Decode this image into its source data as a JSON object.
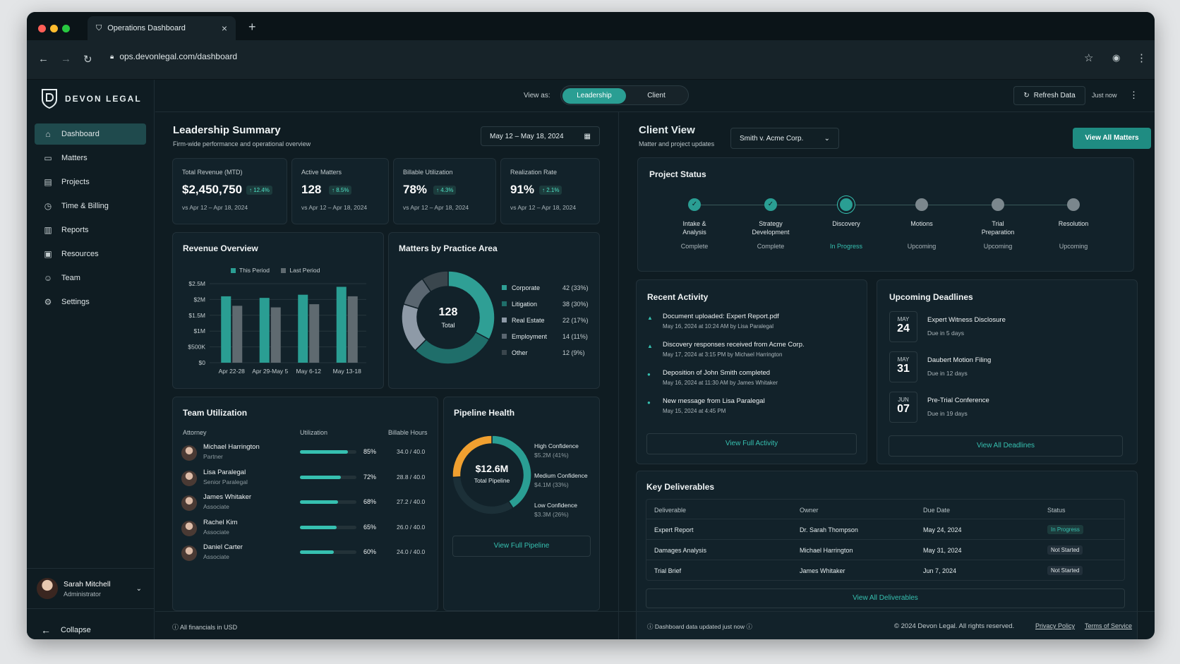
{
  "browser": {
    "tab_title": "Operations Dashboard",
    "url": "ops.devonlegal.com/dashboard"
  },
  "brand": {
    "name": "DEVON LEGAL"
  },
  "colors": {
    "accent": "#36c0b0",
    "background": "#0f1c22",
    "card": "#12222a",
    "orange": "#f0a030",
    "gray_series": "#5f6a70"
  },
  "sidebar": {
    "items": [
      {
        "label": "Dashboard",
        "icon": "home-icon",
        "active": true
      },
      {
        "label": "Matters",
        "icon": "briefcase-icon"
      },
      {
        "label": "Projects",
        "icon": "folder-icon"
      },
      {
        "label": "Time & Billing",
        "icon": "clock-icon"
      },
      {
        "label": "Reports",
        "icon": "bar-chart-icon"
      },
      {
        "label": "Resources",
        "icon": "book-icon"
      },
      {
        "label": "Team",
        "icon": "users-icon"
      },
      {
        "label": "Settings",
        "icon": "gear-icon"
      }
    ],
    "user": {
      "name": "Sarah Mitchell",
      "role": "Administrator"
    },
    "collapse": "Collapse"
  },
  "topbar": {
    "view_as": "View as:",
    "views": [
      "Leadership",
      "Client"
    ],
    "refresh": "Refresh Data",
    "updated": "Just now"
  },
  "leadership": {
    "title": "Leadership Summary",
    "subtitle": "Firm-wide performance and operational overview",
    "date_range": "May 12 – May 18, 2024"
  },
  "kpis": [
    {
      "label": "Total Revenue (MTD)",
      "value": "$2,450,750",
      "change": "↑ 12.4%",
      "compare": "vs Apr 12 – Apr 18, 2024"
    },
    {
      "label": "Active Matters",
      "value": "128",
      "change": "↑ 8.5%",
      "compare": "vs Apr 12 – Apr 18, 2024"
    },
    {
      "label": "Billable Utilization",
      "value": "78%",
      "change": "↑ 4.3%",
      "compare": "vs Apr 12 – Apr 18, 2024"
    },
    {
      "label": "Realization Rate",
      "value": "91%",
      "change": "↑ 2.1%",
      "compare": "vs Apr 12 – Apr 18, 2024"
    }
  ],
  "revenue": {
    "title": "Revenue Overview",
    "legend": [
      "This Period",
      "Last Period"
    ],
    "yticks": [
      "$2.5M",
      "$2M",
      "$1.5M",
      "$1M",
      "$500K",
      "$0"
    ]
  },
  "chart_data": [
    {
      "type": "bar",
      "title": "Revenue Overview",
      "categories": [
        "Apr 22-28",
        "Apr 29-May 5",
        "May 6-12",
        "May 13-18"
      ],
      "series": [
        {
          "name": "This Period",
          "values": [
            2.1,
            2.05,
            2.15,
            2.4
          ]
        },
        {
          "name": "Last Period",
          "values": [
            1.8,
            1.75,
            1.85,
            2.1
          ]
        }
      ],
      "ylim": [
        0,
        2.5
      ],
      "grid": true,
      "legend": "top"
    },
    {
      "type": "pie",
      "title": "Matters by Practice Area",
      "center_value": "128",
      "center_label": "Total",
      "labels": [
        "Corporate",
        "Litigation",
        "Real Estate",
        "Employment",
        "Other"
      ],
      "values": [
        42,
        38,
        22,
        14,
        12
      ],
      "percent": [
        "33%",
        "30%",
        "17%",
        "11%",
        "9%"
      ]
    },
    {
      "type": "pie",
      "title": "Pipeline Health",
      "center_value": "$12.6M",
      "center_label": "Total Pipeline",
      "labels": [
        "High Confidence",
        "Medium Confidence",
        "Low Confidence"
      ],
      "amounts": [
        "$5.2M",
        "$4.1M",
        "$3.3M"
      ],
      "values": [
        41,
        33,
        26
      ]
    }
  ],
  "practice": {
    "title": "Matters by Practice Area",
    "rows": [
      {
        "name": "Corporate",
        "count": "42 (33%)",
        "color": "#2f9f95"
      },
      {
        "name": "Litigation",
        "count": "38 (30%)",
        "color": "#1f6e6a"
      },
      {
        "name": "Real Estate",
        "count": "22 (17%)",
        "color": "#8e9aa7"
      },
      {
        "name": "Employment",
        "count": "14 (11%)",
        "color": "#5a6670"
      },
      {
        "name": "Other",
        "count": "12 (9%)",
        "color": "#3a464d"
      }
    ]
  },
  "utilization": {
    "title": "Team Utilization",
    "headers": [
      "Attorney",
      "Utilization",
      "Billable Hours"
    ],
    "rows": [
      {
        "name": "Michael Harrington",
        "role": "Partner",
        "pct": "85%",
        "value": 85,
        "hours": "34.0 / 40.0"
      },
      {
        "name": "Lisa Paralegal",
        "role": "Senior Paralegal",
        "pct": "72%",
        "value": 72,
        "hours": "28.8 / 40.0"
      },
      {
        "name": "James Whitaker",
        "role": "Associate",
        "pct": "68%",
        "value": 68,
        "hours": "27.2 / 40.0"
      },
      {
        "name": "Rachel Kim",
        "role": "Associate",
        "pct": "65%",
        "value": 65,
        "hours": "26.0 / 40.0"
      },
      {
        "name": "Daniel Carter",
        "role": "Associate",
        "pct": "60%",
        "value": 60,
        "hours": "24.0 / 40.0"
      }
    ]
  },
  "pipeline": {
    "title": "Pipeline Health",
    "rows": [
      {
        "label": "High Confidence",
        "amount": "$5.2M (41%)"
      },
      {
        "label": "Medium Confidence",
        "amount": "$4.1M (33%)"
      },
      {
        "label": "Low Confidence",
        "amount": "$3.3M (26%)"
      }
    ],
    "button": "View Full Pipeline"
  },
  "client": {
    "title": "Client View",
    "subtitle": "Matter and project updates",
    "matter": "Smith v. Acme Corp.",
    "view_all": "View All Matters"
  },
  "status": {
    "title": "Project Status",
    "steps": [
      {
        "l1": "Intake &",
        "l2": "Analysis",
        "state": "Complete"
      },
      {
        "l1": "Strategy",
        "l2": "Development",
        "state": "Complete"
      },
      {
        "l1": "Discovery",
        "l2": "",
        "state": "In Progress"
      },
      {
        "l1": "Motions",
        "l2": "",
        "state": "Upcoming"
      },
      {
        "l1": "Trial",
        "l2": "Preparation",
        "state": "Upcoming"
      },
      {
        "l1": "Resolution",
        "l2": "",
        "state": "Upcoming"
      }
    ]
  },
  "activity": {
    "title": "Recent Activity",
    "items": [
      {
        "text": "Document uploaded: Expert Report.pdf",
        "meta": "May 16, 2024 at 10:24 AM by Lisa Paralegal"
      },
      {
        "text": "Discovery responses received from Acme Corp.",
        "meta": "May 17, 2024 at 3:15 PM by Michael Harrington"
      },
      {
        "text": "Deposition of John Smith completed",
        "meta": "May 16, 2024 at 11:30 AM by James Whitaker"
      },
      {
        "text": "New message from Lisa Paralegal",
        "meta": "May 15, 2024 at 4:45 PM"
      }
    ],
    "button": "View Full Activity"
  },
  "deadlines": {
    "title": "Upcoming Deadlines",
    "items": [
      {
        "month": "MAY",
        "day": "24",
        "title": "Expert Witness Disclosure",
        "due": "Due in 5 days"
      },
      {
        "month": "MAY",
        "day": "31",
        "title": "Daubert Motion Filing",
        "due": "Due in 12 days"
      },
      {
        "month": "JUN",
        "day": "07",
        "title": "Pre-Trial Conference",
        "due": "Due in 19 days"
      }
    ],
    "button": "View All Deadlines"
  },
  "deliverables": {
    "title": "Key Deliverables",
    "headers": [
      "Deliverable",
      "Owner",
      "Due Date",
      "Status"
    ],
    "rows": [
      {
        "name": "Expert Report",
        "owner": "Dr. Sarah Thompson",
        "due": "May 24, 2024",
        "status": "In Progress"
      },
      {
        "name": "Damages Analysis",
        "owner": "Michael Harrington",
        "due": "May 31, 2024",
        "status": "Not Started"
      },
      {
        "name": "Trial Brief",
        "owner": "James Whitaker",
        "due": "Jun 7, 2024",
        "status": "Not Started"
      }
    ],
    "button": "View All Deliverables"
  },
  "footer": {
    "currency": "All financials in USD",
    "updated": "Dashboard data updated just now",
    "copyright": "© 2024 Devon Legal. All rights reserved.",
    "privacy": "Privacy Policy",
    "terms": "Terms of Service"
  }
}
